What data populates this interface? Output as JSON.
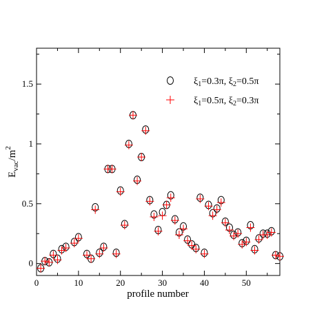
{
  "chart_data": {
    "type": "scatter",
    "title": "",
    "xlabel": "profile number",
    "ylabel_main": "E",
    "ylabel_sub": "vac",
    "ylabel_rest": "/m",
    "ylabel_sup": "2",
    "xlim": [
      0,
      58
    ],
    "ylim": [
      -0.1,
      1.8
    ],
    "x_ticks": [
      0,
      10,
      20,
      30,
      40,
      50
    ],
    "y_ticks": [
      0,
      0.5,
      1,
      1.5
    ],
    "y_tick_labels": [
      "0",
      "0.5",
      "1",
      "1.5"
    ],
    "grid": false,
    "legend_position": "top-right",
    "series": [
      {
        "name_parts": [
          "ξ",
          "1",
          "=0.3π,  ξ",
          "2",
          "=0.5π"
        ],
        "marker": "circle",
        "color": "#000000",
        "points": [
          [
            1,
            -0.04
          ],
          [
            2,
            0.02
          ],
          [
            3,
            0.01
          ],
          [
            4,
            0.08
          ],
          [
            5,
            0.04
          ],
          [
            6,
            0.12
          ],
          [
            7,
            0.14
          ],
          [
            9,
            0.18
          ],
          [
            10,
            0.22
          ],
          [
            12,
            0.08
          ],
          [
            13,
            0.04
          ],
          [
            14,
            0.47
          ],
          [
            15,
            0.09
          ],
          [
            16,
            0.14
          ],
          [
            17,
            0.79
          ],
          [
            18,
            0.79
          ],
          [
            19,
            0.09
          ],
          [
            20,
            0.61
          ],
          [
            21,
            0.33
          ],
          [
            22,
            1.0
          ],
          [
            23,
            1.24
          ],
          [
            24,
            0.7
          ],
          [
            25,
            0.89
          ],
          [
            26,
            1.12
          ],
          [
            27,
            0.53
          ],
          [
            28,
            0.41
          ],
          [
            29,
            0.28
          ],
          [
            30,
            0.43
          ],
          [
            31,
            0.49
          ],
          [
            32,
            0.57
          ],
          [
            33,
            0.37
          ],
          [
            34,
            0.26
          ],
          [
            35,
            0.31
          ],
          [
            36,
            0.2
          ],
          [
            37,
            0.16
          ],
          [
            38,
            0.13
          ],
          [
            39,
            0.55
          ],
          [
            40,
            0.09
          ],
          [
            41,
            0.49
          ],
          [
            42,
            0.42
          ],
          [
            43,
            0.46
          ],
          [
            44,
            0.53
          ],
          [
            45,
            0.35
          ],
          [
            46,
            0.3
          ],
          [
            47,
            0.24
          ],
          [
            48,
            0.26
          ],
          [
            49,
            0.17
          ],
          [
            50,
            0.19
          ],
          [
            51,
            0.32
          ],
          [
            52,
            0.12
          ],
          [
            53,
            0.21
          ],
          [
            54,
            0.25
          ],
          [
            55,
            0.25
          ],
          [
            56,
            0.27
          ],
          [
            57,
            0.07
          ],
          [
            58,
            0.06
          ]
        ]
      },
      {
        "name_parts": [
          "ξ",
          "1",
          "=0.5π,  ξ",
          "2",
          "=0.3π"
        ],
        "marker": "plus",
        "color": "#ff0000",
        "points": [
          [
            1,
            -0.04
          ],
          [
            2,
            0.02
          ],
          [
            3,
            0.01
          ],
          [
            4,
            0.07
          ],
          [
            5,
            0.03
          ],
          [
            6,
            0.11
          ],
          [
            7,
            0.13
          ],
          [
            9,
            0.17
          ],
          [
            10,
            0.21
          ],
          [
            12,
            0.07
          ],
          [
            13,
            0.04
          ],
          [
            14,
            0.45
          ],
          [
            15,
            0.08
          ],
          [
            16,
            0.13
          ],
          [
            17,
            0.79
          ],
          [
            18,
            0.79
          ],
          [
            19,
            0.08
          ],
          [
            20,
            0.6
          ],
          [
            21,
            0.32
          ],
          [
            22,
            0.99
          ],
          [
            23,
            1.24
          ],
          [
            24,
            0.69
          ],
          [
            25,
            0.89
          ],
          [
            26,
            1.11
          ],
          [
            27,
            0.52
          ],
          [
            28,
            0.39
          ],
          [
            29,
            0.27
          ],
          [
            30,
            0.4
          ],
          [
            31,
            0.49
          ],
          [
            32,
            0.55
          ],
          [
            33,
            0.36
          ],
          [
            34,
            0.24
          ],
          [
            35,
            0.29
          ],
          [
            36,
            0.19
          ],
          [
            37,
            0.15
          ],
          [
            38,
            0.12
          ],
          [
            39,
            0.54
          ],
          [
            40,
            0.08
          ],
          [
            41,
            0.48
          ],
          [
            42,
            0.4
          ],
          [
            43,
            0.45
          ],
          [
            44,
            0.51
          ],
          [
            45,
            0.34
          ],
          [
            46,
            0.28
          ],
          [
            47,
            0.23
          ],
          [
            48,
            0.25
          ],
          [
            49,
            0.16
          ],
          [
            50,
            0.18
          ],
          [
            51,
            0.3
          ],
          [
            52,
            0.11
          ],
          [
            53,
            0.2
          ],
          [
            54,
            0.24
          ],
          [
            55,
            0.24
          ],
          [
            56,
            0.26
          ],
          [
            57,
            0.07
          ],
          [
            58,
            0.06
          ]
        ]
      }
    ]
  }
}
